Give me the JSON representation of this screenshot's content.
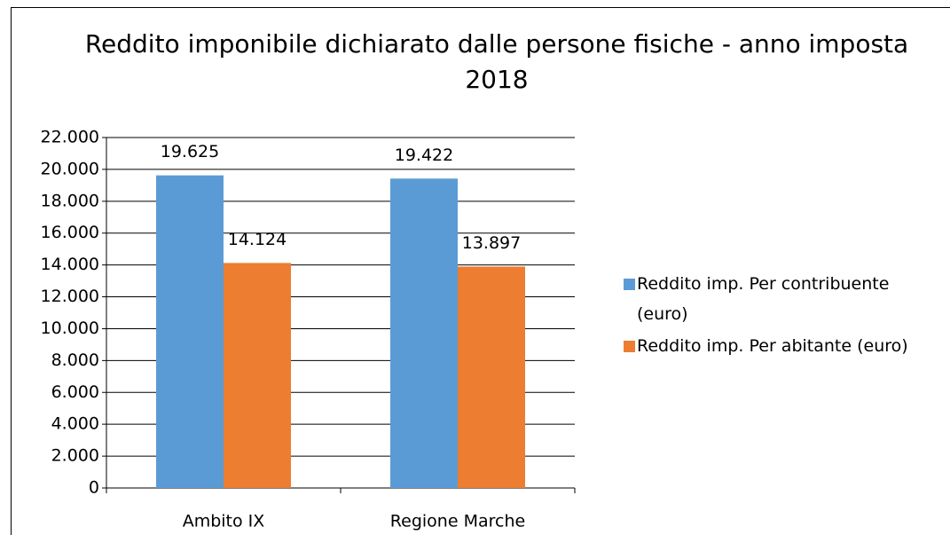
{
  "chart_data": {
    "type": "bar",
    "title": "Reddito imponibile dichiarato dalle persone fisiche - anno imposta 2018",
    "categories": [
      "Ambito IX",
      "Regione Marche"
    ],
    "series": [
      {
        "name": "Reddito imp. Per contribuente (euro)",
        "color": "#5b9bd5",
        "values": [
          19625,
          19422
        ],
        "value_labels": [
          "19.625",
          "19.422"
        ]
      },
      {
        "name": "Reddito imp. Per abitante (euro)",
        "color": "#ed7d31",
        "values": [
          14124,
          13897
        ],
        "value_labels": [
          "14.124",
          "13.897"
        ]
      }
    ],
    "ylim": [
      0,
      22000
    ],
    "yticks": [
      0,
      {
        "value": 2000,
        "label": "2.000"
      },
      {
        "value": 4000,
        "label": "4.000"
      },
      {
        "value": 6000,
        "label": "6.000"
      },
      {
        "value": 8000,
        "label": "8.000"
      },
      {
        "value": 10000,
        "label": "10.000"
      },
      {
        "value": 12000,
        "label": "12.000"
      },
      {
        "value": 14000,
        "label": "14.000"
      },
      {
        "value": 16000,
        "label": "16.000"
      },
      {
        "value": 18000,
        "label": "18.000"
      },
      {
        "value": 20000,
        "label": "20.000"
      },
      {
        "value": 22000,
        "label": "22.000"
      }
    ],
    "grid": true,
    "legend": "right"
  }
}
